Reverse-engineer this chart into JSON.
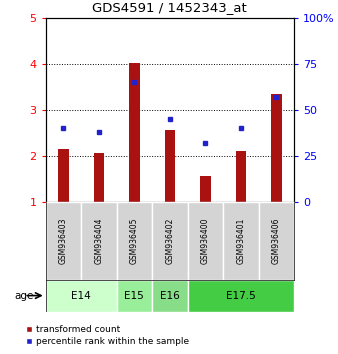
{
  "title": "GDS4591 / 1452343_at",
  "samples": [
    "GSM936403",
    "GSM936404",
    "GSM936405",
    "GSM936402",
    "GSM936400",
    "GSM936401",
    "GSM936406"
  ],
  "transformed_count": [
    2.15,
    2.05,
    4.02,
    2.55,
    1.55,
    2.1,
    3.35
  ],
  "percentile_rank": [
    40,
    38,
    65,
    45,
    32,
    40,
    57
  ],
  "age_groups": [
    {
      "label": "E14",
      "samples": [
        0,
        1
      ],
      "color": "#ccffcc"
    },
    {
      "label": "E15",
      "samples": [
        2
      ],
      "color": "#99ee99"
    },
    {
      "label": "E16",
      "samples": [
        3
      ],
      "color": "#88dd88"
    },
    {
      "label": "E17.5",
      "samples": [
        4,
        5,
        6
      ],
      "color": "#44cc44"
    }
  ],
  "ylim_left": [
    1,
    5
  ],
  "ylim_right": [
    0,
    100
  ],
  "yticks_left": [
    1,
    2,
    3,
    4,
    5
  ],
  "yticks_right": [
    0,
    25,
    50,
    75,
    100
  ],
  "ytick_labels_right": [
    "0",
    "25",
    "50",
    "75",
    "100%"
  ],
  "bar_color": "#aa1111",
  "dot_color": "#2222cc",
  "legend_red": "transformed count",
  "legend_blue": "percentile rank within the sample",
  "age_label": "age",
  "background_color": "#ffffff",
  "sample_box_color": "#d4d4d4",
  "grid_lines_at": [
    2,
    3,
    4
  ]
}
